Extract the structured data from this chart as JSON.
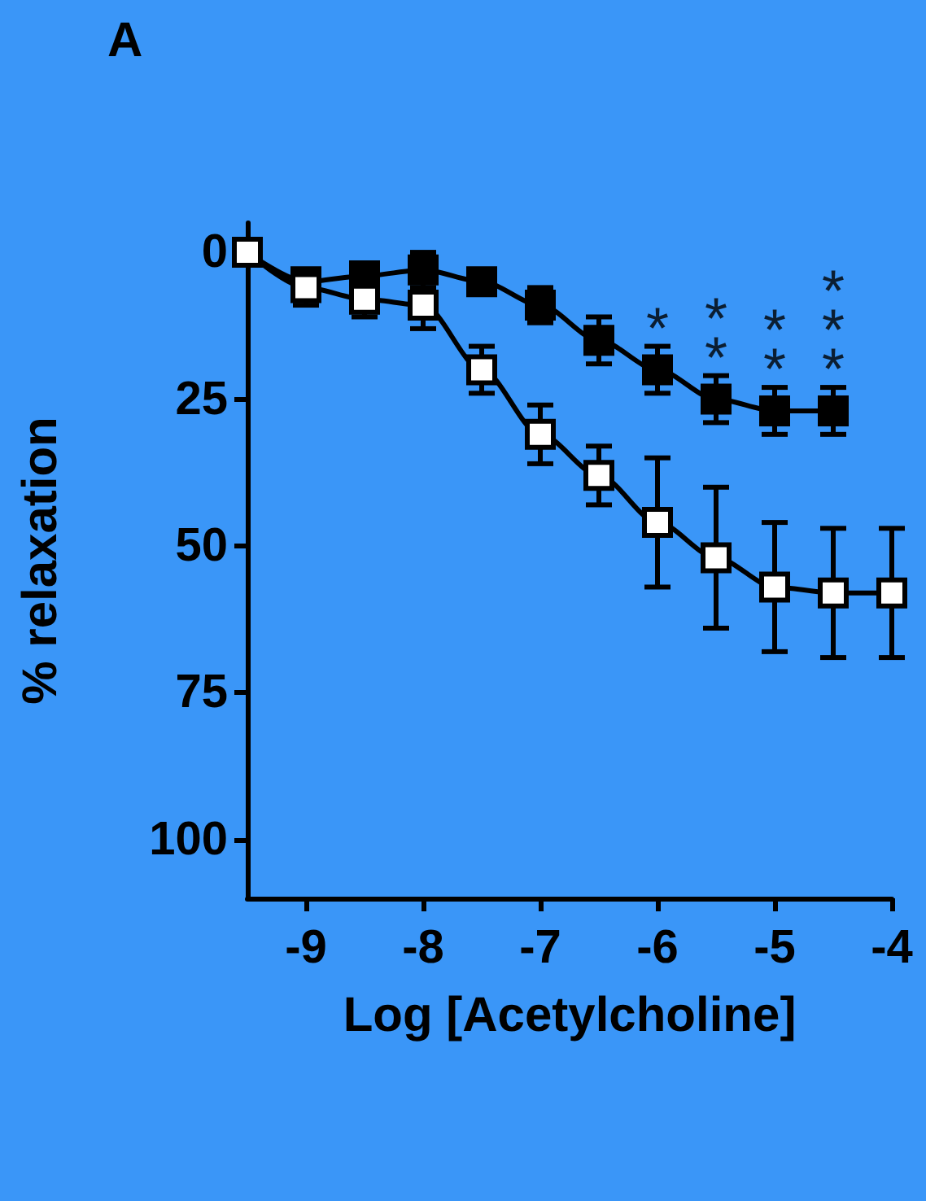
{
  "chart_data": {
    "type": "line",
    "xlabel": "Log [Acetylcholine]",
    "ylabel": "% relaxation",
    "x": [
      -9.5,
      -9,
      -8.5,
      -8,
      -7.5,
      -7,
      -6.5,
      -6,
      -5.5,
      -5,
      -4.5,
      -4
    ],
    "series": [
      {
        "color": "#000000",
        "values": [
          0,
          5,
          4,
          3,
          5,
          9,
          15,
          20,
          25,
          27,
          27,
          null
        ],
        "errors": [
          null,
          null,
          null,
          3,
          null,
          3,
          4,
          4,
          4,
          4,
          4,
          null
        ]
      },
      {
        "color": "#ffffff",
        "values": [
          0,
          6,
          8,
          9,
          20,
          31,
          38,
          46,
          52,
          57,
          58,
          58
        ],
        "errors": [
          null,
          3,
          3,
          4,
          4,
          5,
          5,
          11,
          12,
          11,
          11,
          11
        ]
      }
    ],
    "xlim": [
      -9.5,
      -4
    ],
    "xticks": [
      -9,
      -8,
      -7,
      -6,
      -5,
      -4
    ],
    "ylim": [
      110,
      -5
    ],
    "yticks": [
      0,
      25,
      50,
      75,
      100
    ],
    "grid": false,
    "marker": "square",
    "line_style": "solid",
    "annotations": [
      "A",
      {
        "text": "*",
        "x": -6,
        "y": 20
      },
      {
        "text": "*",
        "x": -5.5,
        "y": 25
      },
      {
        "text": "*",
        "x": -5.5,
        "y": 25
      },
      {
        "text": "*",
        "x": -5,
        "y": 27
      },
      {
        "text": "*",
        "x": -5,
        "y": 27
      },
      {
        "text": "*",
        "x": -4.5,
        "y": 27
      },
      {
        "text": "*",
        "x": -4.5,
        "y": 27
      },
      {
        "text": "*",
        "x": -4.5,
        "y": 27
      }
    ]
  }
}
